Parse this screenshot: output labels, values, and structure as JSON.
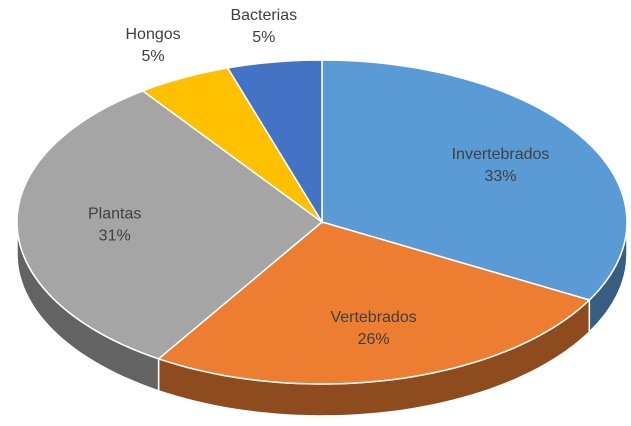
{
  "chart_data": {
    "type": "pie3d",
    "categories": [
      "Invertebrados",
      "Vertebrados",
      "Plantas",
      "Hongos",
      "Bacterias"
    ],
    "values": [
      33,
      26,
      31,
      5,
      5
    ],
    "value_labels": [
      "33%",
      "26%",
      "31%",
      "5%",
      "5%"
    ],
    "colors": [
      "#5b9bd5",
      "#ed7d31",
      "#a5a5a5",
      "#ffc000",
      "#4472c4"
    ]
  }
}
